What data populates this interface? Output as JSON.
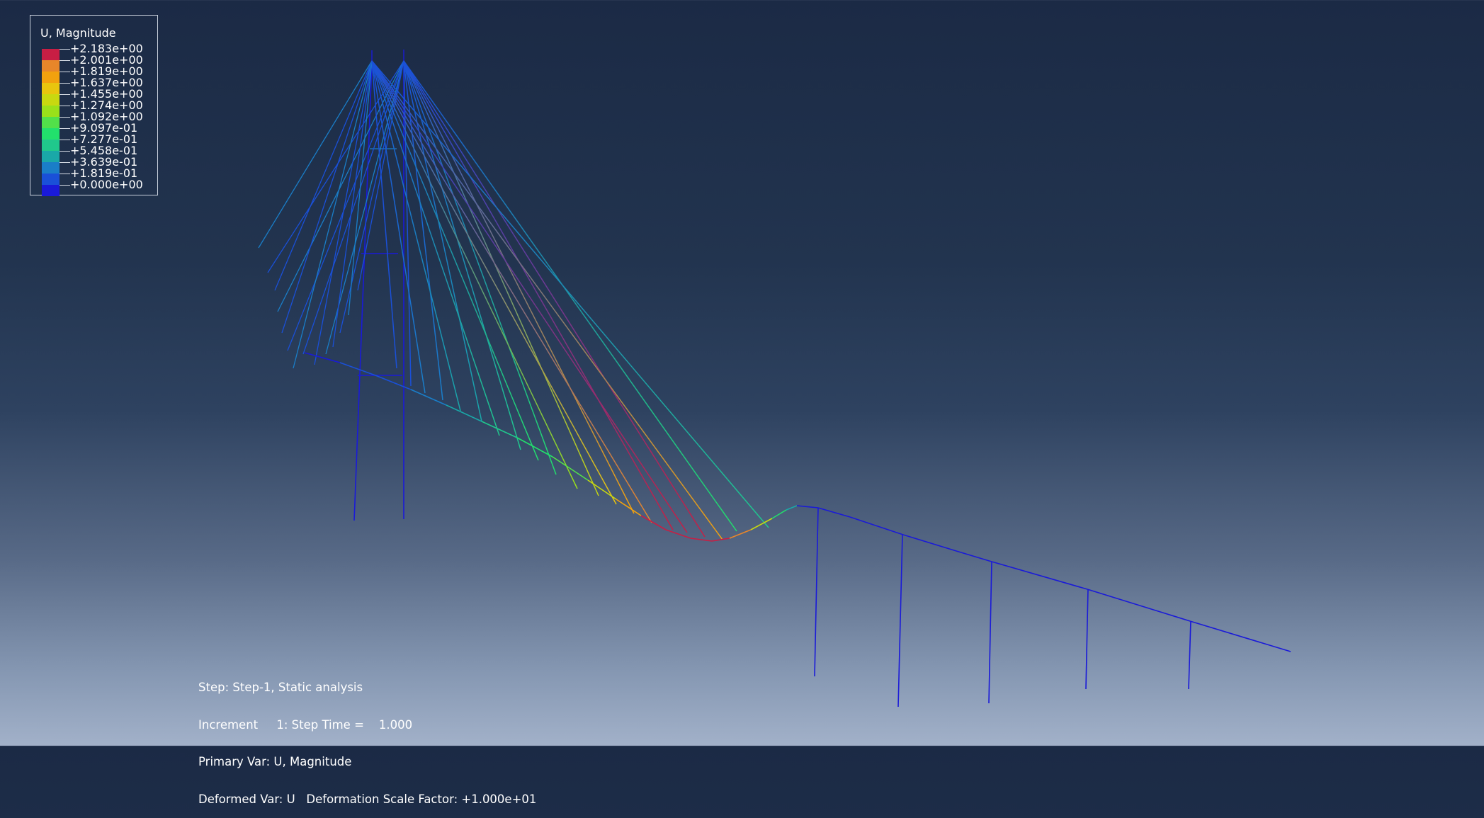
{
  "legend": {
    "title": "U, Magnitude",
    "labels": [
      "+2.183e+00",
      "+2.001e+00",
      "+1.819e+00",
      "+1.637e+00",
      "+1.455e+00",
      "+1.274e+00",
      "+1.092e+00",
      "+9.097e-01",
      "+7.277e-01",
      "+5.458e-01",
      "+3.639e-01",
      "+1.819e-01",
      "+0.000e+00"
    ],
    "colors": [
      "#c81e44",
      "#e8862a",
      "#f2a10e",
      "#e8c50e",
      "#c8d810",
      "#9ae01a",
      "#52e04a",
      "#22e06c",
      "#20c88c",
      "#1aa8a8",
      "#1a7ec8",
      "#1a50d8",
      "#1a1ad8"
    ]
  },
  "info": {
    "step": "Step: Step-1, Static analysis",
    "increment": "Increment     1: Step Time =    1.000",
    "primary_var": "Primary Var: U, Magnitude",
    "deformed_var": "Deformed Var: U   Deformation Scale Factor: +1.000e+01"
  }
}
